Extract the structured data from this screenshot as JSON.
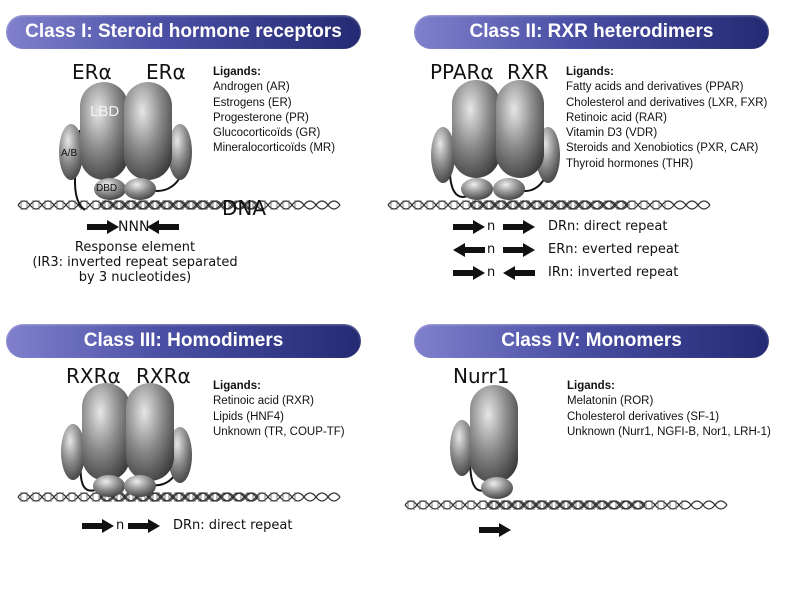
{
  "classes": [
    {
      "title": "Class I: Steroid hormone receptors",
      "labels": [
        "ERα",
        "ERα"
      ],
      "domain_labels": {
        "lbd": "LBD",
        "ab": "A/B",
        "dbd": "DBD"
      },
      "dna_label": "DNA",
      "spacer": "NNN",
      "ligands_heading": "Ligands:",
      "ligands": [
        "Androgen (AR)",
        "Estrogens (ER)",
        "Progesterone (PR)",
        "Glucocorticoïds (GR)",
        "Mineralocorticoïds (MR)"
      ],
      "response_caption": [
        "Response element",
        "(IR3: inverted repeat separated",
        "by 3 nucleotides)"
      ]
    },
    {
      "title": "Class II: RXR heterodimers",
      "labels": [
        "PPARα",
        "RXR"
      ],
      "ligands_heading": "Ligands:",
      "ligands": [
        "Fatty acids and derivatives (PPAR)",
        "Cholesterol and derivatives (LXR, FXR)",
        "Retinoic acid (RAR)",
        "Vitamin D3 (VDR)",
        "Steroids and Xenobiotics (PXR, CAR)",
        "Thyroid hormones (THR)"
      ],
      "repeats": [
        {
          "n": "n",
          "text": "DRn: direct repeat"
        },
        {
          "n": "n",
          "text": "ERn: everted repeat"
        },
        {
          "n": "n",
          "text": "IRn: inverted repeat"
        }
      ]
    },
    {
      "title": "Class III: Homodimers",
      "labels": [
        "RXRα",
        "RXRα"
      ],
      "ligands_heading": "Ligands:",
      "ligands": [
        "Retinoic acid (RXR)",
        "Lipids (HNF4)",
        "Unknown (TR, COUP-TF)"
      ],
      "repeats": [
        {
          "n": "n",
          "text": "DRn: direct repeat"
        }
      ]
    },
    {
      "title": "Class IV: Monomers",
      "labels": [
        "Nurr1"
      ],
      "ligands_heading": "Ligands:",
      "ligands": [
        "Melatonin (ROR)",
        "Cholesterol derivatives (SF-1)",
        "Unknown (Nurr1, NGFI-B, Nor1, LRH-1)"
      ]
    }
  ]
}
